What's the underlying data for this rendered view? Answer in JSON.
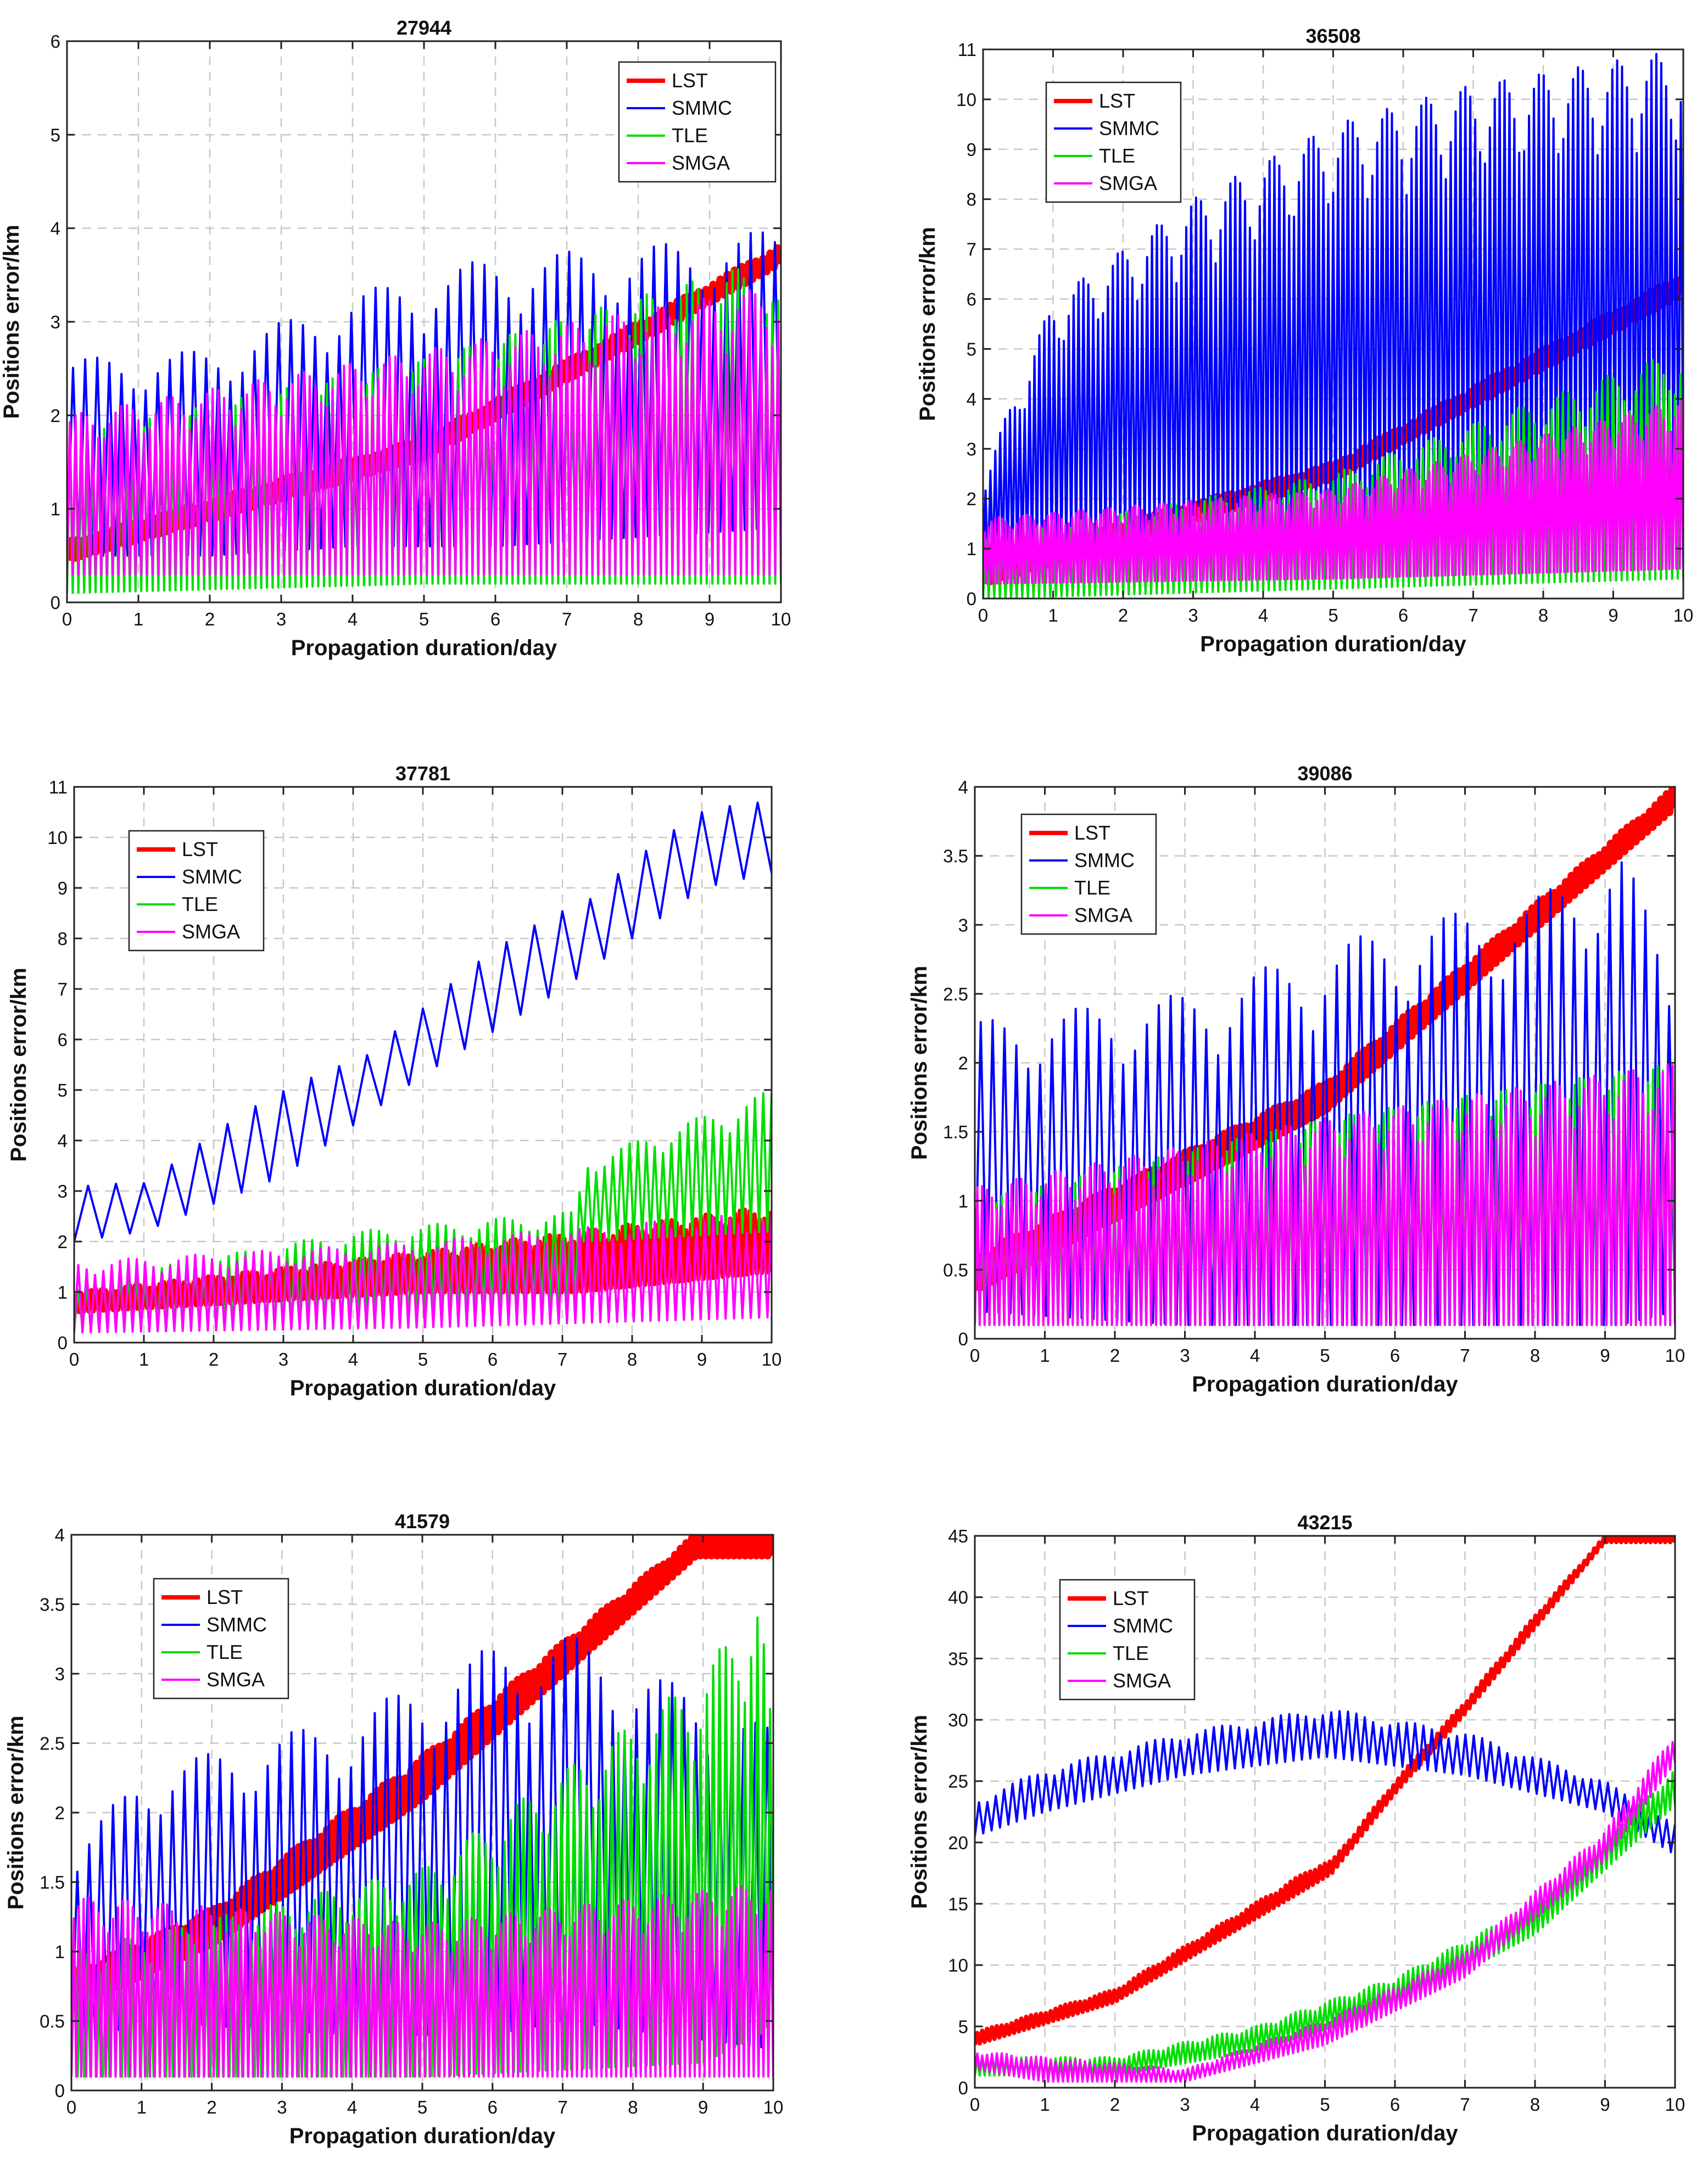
{
  "figure": {
    "description_free": true
  },
  "chart_data": [
    {
      "type": "line",
      "title": "27944",
      "xlabel": "Propagation duration/day",
      "ylabel": "Positions error/km",
      "xlim": [
        0,
        10
      ],
      "ylim": [
        0,
        6
      ],
      "xticks": [
        0,
        1,
        2,
        3,
        4,
        5,
        6,
        7,
        8,
        9,
        10
      ],
      "yticks": [
        0,
        1,
        2,
        3,
        4,
        5,
        6
      ],
      "grid": true,
      "legend_position": "top-right",
      "series": [
        {
          "name": "LST",
          "color": "#ff0000",
          "width": 14,
          "period": 0.1,
          "knots": [
            [
              0,
              0.45,
              0.65
            ],
            [
              5,
              1.55,
              1.75
            ],
            [
              10,
              3.62,
              3.82
            ]
          ]
        },
        {
          "name": "SMMC",
          "color": "#0000ff",
          "width": 4,
          "period": 0.17,
          "knots": [
            [
              0,
              0.5,
              2.6
            ],
            [
              2,
              0.5,
              2.7
            ],
            [
              4,
              0.6,
              3.3
            ],
            [
              6,
              0.6,
              3.7
            ],
            [
              8,
              0.7,
              3.8
            ],
            [
              10,
              0.8,
              4.0
            ]
          ]
        },
        {
          "name": "TLE",
          "color": "#00dd00",
          "width": 4,
          "period": 0.08,
          "knots": [
            [
              0,
              0.1,
              1.8
            ],
            [
              5,
              0.2,
              2.6
            ],
            [
              9.5,
              0.2,
              3.6
            ],
            [
              10,
              0.2,
              3.2
            ]
          ]
        },
        {
          "name": "SMGA",
          "color": "#ff00ff",
          "width": 4,
          "period": 0.08,
          "knots": [
            [
              0,
              0.3,
              2.0
            ],
            [
              5,
              0.3,
              2.7
            ],
            [
              10,
              0.3,
              3.4
            ]
          ]
        }
      ]
    },
    {
      "type": "line",
      "title": "36508",
      "xlabel": "Propagation duration/day",
      "ylabel": "Positions error/km",
      "xlim": [
        0,
        10
      ],
      "ylim": [
        0,
        11
      ],
      "xticks": [
        0,
        1,
        2,
        3,
        4,
        5,
        6,
        7,
        8,
        9,
        10
      ],
      "yticks": [
        0,
        1,
        2,
        3,
        4,
        5,
        6,
        7,
        8,
        9,
        10,
        11
      ],
      "grid": true,
      "legend_position": "top-left",
      "series": [
        {
          "name": "LST",
          "color": "#ff0000",
          "width": 14,
          "period": 0.1,
          "knots": [
            [
              0,
              0.3,
              0.7
            ],
            [
              5,
              2.4,
              2.7
            ],
            [
              10,
              6.1,
              6.5
            ]
          ]
        },
        {
          "name": "SMMC",
          "color": "#0000ff",
          "width": 4,
          "period": 0.07,
          "knots": [
            [
              0,
              0.5,
              2.5
            ],
            [
              1,
              0.8,
              6.0
            ],
            [
              3,
              1.0,
              8.0
            ],
            [
              5,
              1.2,
              9.5
            ],
            [
              7,
              1.8,
              10.3
            ],
            [
              10,
              2.0,
              11.0
            ]
          ]
        },
        {
          "name": "TLE",
          "color": "#00dd00",
          "width": 4,
          "period": 0.08,
          "knots": [
            [
              0,
              0.0,
              1.2
            ],
            [
              5,
              0.2,
              2.5
            ],
            [
              10,
              0.4,
              5.0
            ]
          ]
        },
        {
          "name": "SMGA",
          "color": "#ff00ff",
          "width": 4,
          "period": 0.05,
          "knots": [
            [
              0,
              0.3,
              1.6
            ],
            [
              5,
              0.4,
              2.2
            ],
            [
              10,
              0.6,
              4.0
            ]
          ]
        }
      ]
    },
    {
      "type": "line",
      "title": "37781",
      "xlabel": "Propagation duration/day",
      "ylabel": "Positions error/km",
      "xlim": [
        0,
        10
      ],
      "ylim": [
        0,
        11
      ],
      "xticks": [
        0,
        1,
        2,
        3,
        4,
        5,
        6,
        7,
        8,
        9,
        10
      ],
      "yticks": [
        0,
        1,
        2,
        3,
        4,
        5,
        6,
        7,
        8,
        9,
        10,
        11
      ],
      "grid": true,
      "legend_position": "top-left",
      "series": [
        {
          "name": "LST",
          "color": "#ff0000",
          "width": 8,
          "period": 0.07,
          "knots": [
            [
              0,
              0.6,
              1.0
            ],
            [
              5,
              1.0,
              1.8
            ],
            [
              7.2,
              1.0,
              2.2
            ],
            [
              10,
              1.4,
              2.7
            ]
          ]
        },
        {
          "name": "SMMC",
          "color": "#0000ff",
          "width": 4,
          "period": 0.4,
          "knots": [
            [
              0,
              2.0,
              3.1
            ],
            [
              1,
              2.2,
              3.4
            ],
            [
              3,
              3.3,
              5.0
            ],
            [
              5,
              5.3,
              6.7
            ],
            [
              7,
              7.0,
              8.8
            ],
            [
              9,
              9.0,
              10.5
            ],
            [
              10,
              9.3,
              10.9
            ]
          ]
        },
        {
          "name": "TLE",
          "color": "#00dd00",
          "width": 4,
          "period": 0.12,
          "knots": [
            [
              0,
              0.3,
              1.2
            ],
            [
              4,
              0.4,
              2.2
            ],
            [
              7.2,
              0.8,
              2.6
            ],
            [
              7.3,
              2.0,
              3.6
            ],
            [
              10,
              2.2,
              5.0
            ]
          ]
        },
        {
          "name": "SMGA",
          "color": "#ff00ff",
          "width": 4,
          "period": 0.12,
          "knots": [
            [
              0,
              0.2,
              1.6
            ],
            [
              5,
              0.3,
              2.0
            ],
            [
              10,
              0.5,
              2.6
            ]
          ]
        }
      ]
    },
    {
      "type": "line",
      "title": "39086",
      "xlabel": "Propagation duration/day",
      "ylabel": "Positions error/km",
      "xlim": [
        0,
        10
      ],
      "ylim": [
        0,
        4
      ],
      "xticks": [
        0,
        1,
        2,
        3,
        4,
        5,
        6,
        7,
        8,
        9,
        10
      ],
      "yticks": [
        0,
        0.5,
        1,
        1.5,
        2,
        2.5,
        3,
        3.5,
        4
      ],
      "grid": true,
      "legend_position": "top-left",
      "series": [
        {
          "name": "LST",
          "color": "#ff0000",
          "width": 14,
          "period": 0.08,
          "knots": [
            [
              0,
              0.35,
              0.6
            ],
            [
              5,
              1.65,
              1.85
            ],
            [
              10,
              3.85,
              4.0
            ]
          ]
        },
        {
          "name": "SMMC",
          "color": "#0000ff",
          "width": 4,
          "period": 0.17,
          "knots": [
            [
              0,
              0.2,
              2.3
            ],
            [
              3,
              0.1,
              2.5
            ],
            [
              6,
              0.1,
              3.0
            ],
            [
              8,
              0.1,
              3.2
            ],
            [
              9.2,
              0.1,
              3.6
            ],
            [
              10,
              0.2,
              2.6
            ]
          ]
        },
        {
          "name": "TLE",
          "color": "#00dd00",
          "width": 4,
          "period": 0.07,
          "knots": [
            [
              0,
              0.1,
              1.0
            ],
            [
              5,
              0.1,
              1.6
            ],
            [
              10,
              0.1,
              2.0
            ]
          ]
        },
        {
          "name": "SMGA",
          "color": "#ff00ff",
          "width": 4,
          "period": 0.07,
          "knots": [
            [
              0,
              0.1,
              1.1
            ],
            [
              5,
              0.1,
              1.6
            ],
            [
              10,
              0.1,
              2.0
            ]
          ]
        }
      ]
    },
    {
      "type": "line",
      "title": "41579",
      "xlabel": "Propagation duration/day",
      "ylabel": "Positions error/km",
      "xlim": [
        0,
        10
      ],
      "ylim": [
        0,
        4
      ],
      "xticks": [
        0,
        1,
        2,
        3,
        4,
        5,
        6,
        7,
        8,
        9,
        10
      ],
      "yticks": [
        0,
        0.5,
        1,
        1.5,
        2,
        2.5,
        3,
        3.5,
        4
      ],
      "grid": true,
      "legend_position": "top-left",
      "series": [
        {
          "name": "LST",
          "color": "#ff0000",
          "width": 14,
          "period": 0.08,
          "knots": [
            [
              0,
              0.6,
              0.85
            ],
            [
              2,
              1.05,
              1.3
            ],
            [
              5,
              2.1,
              2.4
            ],
            [
              8.9,
              3.85,
              4.0
            ]
          ]
        },
        {
          "name": "SMMC",
          "color": "#0000ff",
          "width": 4,
          "period": 0.17,
          "knots": [
            [
              0,
              0.3,
              1.7
            ],
            [
              1,
              0.5,
              2.3
            ],
            [
              4,
              0.4,
              2.7
            ],
            [
              6,
              0.4,
              3.2
            ],
            [
              7,
              0.5,
              3.3
            ],
            [
              10,
              0.3,
              2.6
            ]
          ]
        },
        {
          "name": "TLE",
          "color": "#00dd00",
          "width": 4,
          "period": 0.09,
          "knots": [
            [
              0,
              0.1,
              1.0
            ],
            [
              5,
              0.1,
              1.6
            ],
            [
              9,
              0.2,
              3.0
            ],
            [
              9.8,
              0.4,
              3.6
            ],
            [
              10,
              0.5,
              2.5
            ]
          ]
        },
        {
          "name": "SMGA",
          "color": "#ff00ff",
          "width": 4,
          "period": 0.07,
          "knots": [
            [
              0,
              0.1,
              1.4
            ],
            [
              5,
              0.1,
              1.2
            ],
            [
              10,
              0.1,
              1.5
            ]
          ]
        }
      ]
    },
    {
      "type": "line",
      "title": "43215",
      "xlabel": "Propagation duration/day",
      "ylabel": "Positions error/km",
      "xlim": [
        0,
        10
      ],
      "ylim": [
        0,
        45
      ],
      "xticks": [
        0,
        1,
        2,
        3,
        4,
        5,
        6,
        7,
        8,
        9,
        10
      ],
      "yticks": [
        0,
        5,
        10,
        15,
        20,
        25,
        30,
        35,
        40,
        45
      ],
      "grid": true,
      "legend_position": "top-left",
      "series": [
        {
          "name": "LST",
          "color": "#ff0000",
          "width": 8,
          "period": 0.07,
          "knots": [
            [
              0,
              3.5,
              4.5
            ],
            [
              2,
              7.0,
              8.0
            ],
            [
              4.9,
              16.8,
              18.2
            ],
            [
              5.1,
              17.5,
              18.5
            ],
            [
              6,
              24.0,
              25.0
            ],
            [
              7,
              30.5,
              31.5
            ],
            [
              8,
              37.5,
              38.5
            ],
            [
              9,
              44.5,
              45.0
            ]
          ]
        },
        {
          "name": "SMMC",
          "color": "#0000ff",
          "width": 4,
          "period": 0.12,
          "knots": [
            [
              0,
              20.5,
              23.5
            ],
            [
              1,
              22.5,
              26.0
            ],
            [
              3,
              25.5,
              29.0
            ],
            [
              5,
              27.0,
              31.0
            ],
            [
              7,
              25.5,
              29.0
            ],
            [
              9,
              22.5,
              25.0
            ],
            [
              10,
              19.0,
              21.5
            ]
          ]
        },
        {
          "name": "TLE",
          "color": "#00dd00",
          "width": 4,
          "period": 0.07,
          "knots": [
            [
              0,
              1.0,
              2.5
            ],
            [
              2,
              1.0,
              2.5
            ],
            [
              4,
              3.0,
              5.0
            ],
            [
              6,
              6.5,
              9.0
            ],
            [
              8,
              12.5,
              15.0
            ],
            [
              10,
              23.0,
              26.0
            ]
          ]
        },
        {
          "name": "SMGA",
          "color": "#ff00ff",
          "width": 4,
          "period": 0.07,
          "knots": [
            [
              0,
              1.5,
              3.0
            ],
            [
              1,
              0.5,
              2.5
            ],
            [
              3,
              0.5,
              1.5
            ],
            [
              5,
              3.5,
              5.5
            ],
            [
              7,
              9.0,
              11.0
            ],
            [
              9,
              18.5,
              21.0
            ],
            [
              10,
              26.5,
              29.0
            ]
          ]
        }
      ]
    }
  ]
}
